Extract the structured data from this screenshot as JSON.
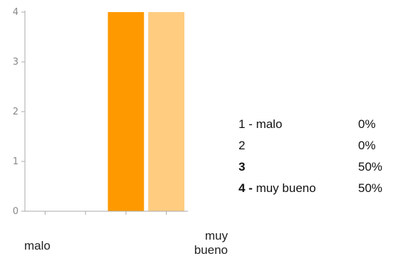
{
  "chart_data": {
    "type": "bar",
    "categories": [
      "1",
      "2",
      "3",
      "4"
    ],
    "values": [
      0,
      0,
      4,
      4
    ],
    "ylim": [
      0,
      4
    ],
    "yticks": [
      0,
      1,
      2,
      3,
      4
    ],
    "grid": false,
    "bar_colors": [
      "#ff9900",
      "#ff9900",
      "#ff9900",
      "#ffcc80"
    ]
  },
  "scale": {
    "low_label": "malo",
    "high_label_line1": "muy",
    "high_label_line2": "bueno"
  },
  "legend": [
    {
      "num": "1",
      "sep": " - ",
      "text": "malo",
      "pct": "0%",
      "bold": false
    },
    {
      "num": "2",
      "sep": "",
      "text": "",
      "pct": "0%",
      "bold": false
    },
    {
      "num": "3",
      "sep": "",
      "text": "",
      "pct": "50%",
      "bold": true
    },
    {
      "num": "4",
      "sep": " - ",
      "text": "muy bueno",
      "pct": "50%",
      "bold": true
    }
  ]
}
